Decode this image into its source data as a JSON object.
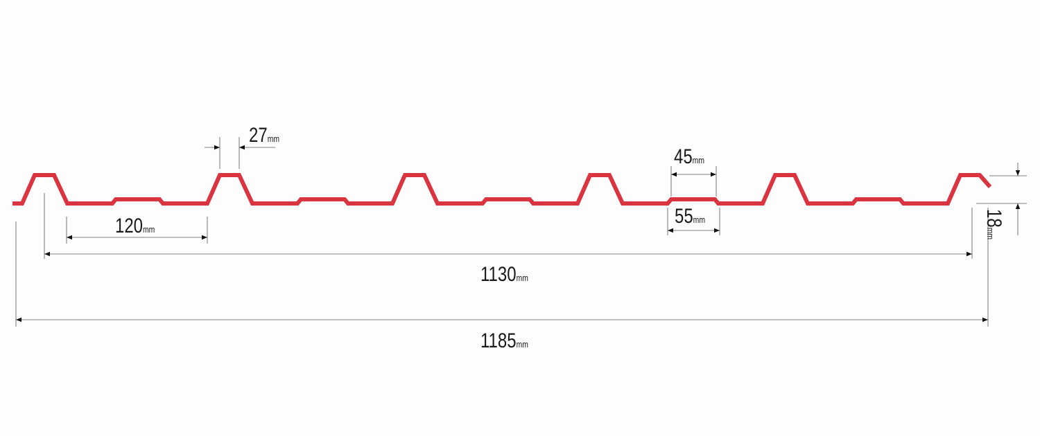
{
  "colors": {
    "profile": "#d9343f",
    "dimension": "#555555",
    "text": "#1a1a1a"
  },
  "dimensions": {
    "crest_top": {
      "value": "27",
      "unit": "mm"
    },
    "rib_top": {
      "value": "45",
      "unit": "mm"
    },
    "rib_base": {
      "value": "55",
      "unit": "mm"
    },
    "valley": {
      "value": "120",
      "unit": "mm"
    },
    "effective_width": {
      "value": "1130",
      "unit": "mm"
    },
    "total_width": {
      "value": "1185",
      "unit": "mm"
    },
    "height": {
      "value": "18",
      "unit": "mm"
    }
  }
}
